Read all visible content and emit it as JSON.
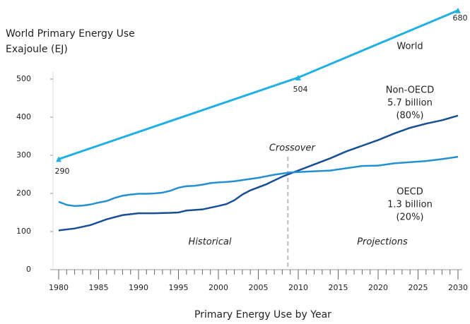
{
  "chart_data": {
    "type": "line",
    "title": [
      "World Primary Energy Use",
      "Exajoule (EJ)"
    ],
    "xlabel": "Primary Energy Use by Year",
    "xlim": [
      1980,
      2030
    ],
    "xticks": [
      1980,
      1985,
      1990,
      1995,
      2000,
      2005,
      2010,
      2015,
      2020,
      2025,
      2030
    ],
    "ylim": [
      0,
      500
    ],
    "yticks": [
      0,
      100,
      200,
      300,
      400,
      500
    ],
    "series": [
      {
        "name": "World",
        "color": "#1fb1e6",
        "x": [
          1980,
          2010,
          2030
        ],
        "values": [
          290,
          504,
          680
        ],
        "markers": true
      },
      {
        "name": "Non-OECD",
        "label_lines": [
          "5.7 billion",
          "(80%)"
        ],
        "color": "#174f96",
        "x": [
          1980,
          1982,
          1984,
          1986,
          1988,
          1990,
          1992,
          1994,
          1995,
          1996,
          1998,
          2000,
          2001,
          2002,
          2003,
          2004,
          2006,
          2008,
          2010,
          2012,
          2014,
          2016,
          2018,
          2020,
          2022,
          2024,
          2026,
          2028,
          2030
        ],
        "values": [
          103,
          108,
          117,
          132,
          143,
          148,
          148,
          149,
          150,
          155,
          158,
          167,
          172,
          182,
          197,
          208,
          224,
          244,
          260,
          276,
          292,
          310,
          325,
          340,
          357,
          372,
          383,
          392,
          404
        ]
      },
      {
        "name": "OECD",
        "label_lines": [
          "1.3 billion",
          "(20%)"
        ],
        "color": "#2290d3",
        "x": [
          1980,
          1981,
          1982,
          1983,
          1984,
          1985,
          1986,
          1987,
          1988,
          1989,
          1990,
          1991,
          1992,
          1993,
          1994,
          1995,
          1996,
          1997,
          1998,
          1999,
          2000,
          2001,
          2002,
          2003,
          2004,
          2005,
          2006,
          2007,
          2008,
          2009,
          2010,
          2012,
          2014,
          2016,
          2018,
          2020,
          2022,
          2024,
          2026,
          2028,
          2030
        ],
        "values": [
          178,
          170,
          167,
          168,
          171,
          176,
          180,
          188,
          194,
          197,
          199,
          199,
          200,
          202,
          207,
          215,
          219,
          220,
          223,
          227,
          229,
          230,
          232,
          235,
          238,
          241,
          245,
          249,
          252,
          255,
          256,
          258,
          260,
          266,
          272,
          273,
          279,
          282,
          285,
          290,
          296
        ]
      }
    ],
    "annotations": [
      {
        "text": "Crossover",
        "x": 2008.7
      },
      {
        "text": "Historical"
      },
      {
        "text": "Projections"
      }
    ]
  }
}
